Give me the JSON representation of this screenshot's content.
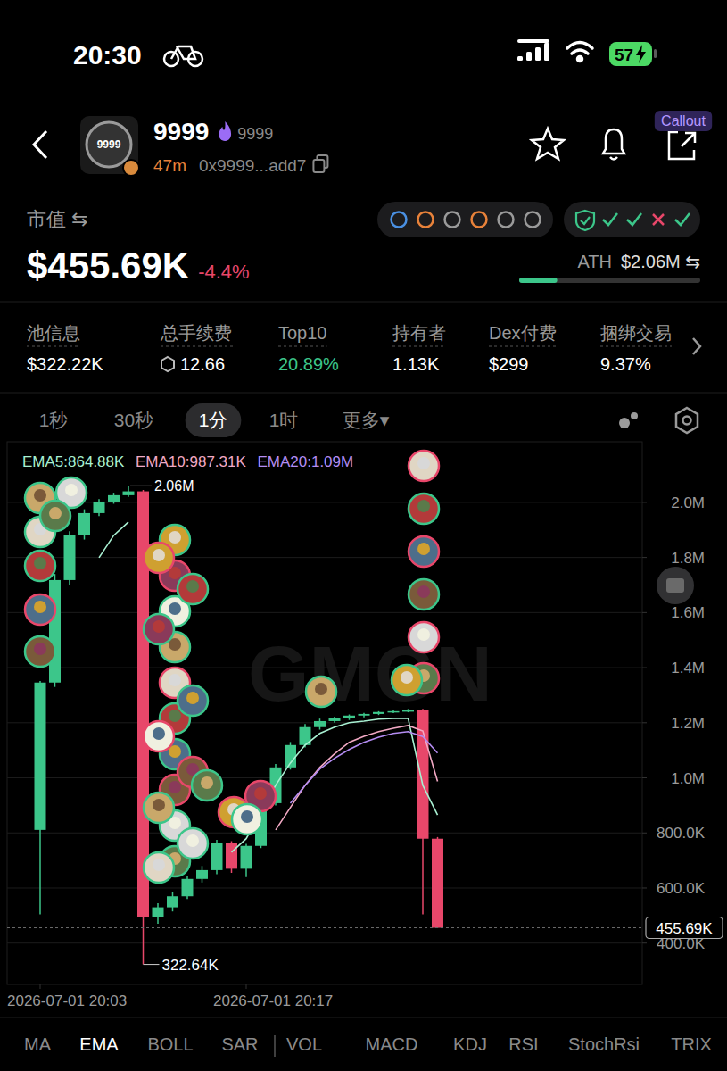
{
  "status_bar": {
    "time": "20:30",
    "battery": "57"
  },
  "header": {
    "symbol": "9999",
    "logo_text": "9999",
    "ticker": "9999",
    "age": "47m",
    "address": "0x9999...add7",
    "badge": "Callout"
  },
  "market_cap": {
    "label": "市值 ⇆",
    "value": "$455.69K",
    "change": "-4.4%",
    "ath_label": "ATH",
    "ath_value": "$2.06M ⇆",
    "ath_progress": 21
  },
  "stats": [
    {
      "label": "池信息",
      "value": "$322.22K"
    },
    {
      "label": "总手续费",
      "value": "12.66"
    },
    {
      "label": "Top10",
      "value": "20.89%"
    },
    {
      "label": "持有者",
      "value": "1.13K"
    },
    {
      "label": "Dex付费",
      "value": "$299"
    },
    {
      "label": "捆绑交易",
      "value": "9.37%"
    }
  ],
  "timeframes": {
    "items": [
      "1秒",
      "30秒",
      "1分",
      "1时",
      "更多▾"
    ],
    "selected": 2
  },
  "chart_data": {
    "type": "candlestick",
    "grid": true,
    "watermark": "GMGN",
    "categories": [
      "2026-07-01 20:03",
      null,
      null,
      null,
      null,
      null,
      null,
      null,
      null,
      null,
      null,
      null,
      null,
      null,
      "2026-07-01 20:17",
      null,
      null,
      null,
      null,
      null,
      null,
      null,
      null,
      null,
      null,
      null,
      null,
      null
    ],
    "ylim": [
      250000,
      2220000
    ],
    "yticks": [
      {
        "value": 400000,
        "label": "400.0K"
      },
      {
        "value": 600000,
        "label": "600.0K"
      },
      {
        "value": 800000,
        "label": "800.0K"
      },
      {
        "value": 1000000,
        "label": "1.0M"
      },
      {
        "value": 1200000,
        "label": "1.2M"
      },
      {
        "value": 1400000,
        "label": "1.4M"
      },
      {
        "value": 1600000,
        "label": "1.6M"
      },
      {
        "value": 1800000,
        "label": "1.8M"
      },
      {
        "value": 2000000,
        "label": "2.0M"
      }
    ],
    "series": [
      {
        "type": "candlestick",
        "open": [
          811000,
          1346000,
          1718000,
          1880000,
          1961000,
          2003000,
          2026000,
          2040000,
          494000,
          530000,
          570000,
          633000,
          665000,
          763000,
          670000,
          753000,
          908000,
          1038000,
          1119000,
          1184000,
          1206000,
          1216000,
          1226000,
          1232000,
          1239000,
          1242000,
          1245000,
          779000
        ],
        "high": [
          1352000,
          1740000,
          1895000,
          1975000,
          2012000,
          2035000,
          2060000,
          2045000,
          545000,
          585000,
          645000,
          680000,
          775000,
          770000,
          760000,
          920000,
          1050000,
          1130000,
          1195000,
          1215000,
          1222000,
          1230000,
          1236000,
          1242000,
          1245000,
          1250000,
          1250000,
          785000
        ],
        "low": [
          504000,
          1330000,
          1700000,
          1865000,
          1950000,
          1995000,
          2020000,
          322640,
          470000,
          515000,
          560000,
          620000,
          650000,
          655000,
          640000,
          745000,
          900000,
          1030000,
          1110000,
          1175000,
          1200000,
          1210000,
          1220000,
          1228000,
          1235000,
          1238000,
          504000,
          455690
        ],
        "close": [
          1346000,
          1718000,
          1880000,
          1961000,
          2003000,
          2026000,
          2040000,
          494000,
          530000,
          570000,
          633000,
          665000,
          763000,
          670000,
          753000,
          908000,
          1038000,
          1119000,
          1184000,
          1206000,
          1216000,
          1226000,
          1232000,
          1239000,
          1242000,
          1245000,
          779000,
          455690
        ],
        "colors": [
          "#3cc68a",
          "#3cc68a",
          "#3cc68a",
          "#3cc68a",
          "#3cc68a",
          "#3cc68a",
          "#3cc68a",
          "#e8476a",
          "#3cc68a",
          "#3cc68a",
          "#3cc68a",
          "#3cc68a",
          "#3cc68a",
          "#e8476a",
          "#3cc68a",
          "#3cc68a",
          "#3cc68a",
          "#3cc68a",
          "#3cc68a",
          "#3cc68a",
          "#3cc68a",
          "#3cc68a",
          "#3cc68a",
          "#3cc68a",
          "#3cc68a",
          "#3cc68a",
          "#e8476a",
          "#e8476a"
        ]
      },
      {
        "name": "EMA5:864.88K",
        "type": "line",
        "color": "#a8f0d2",
        "values": [
          null,
          null,
          null,
          null,
          1799000,
          1880000,
          1929000,
          null,
          null,
          null,
          null,
          null,
          null,
          730000,
          779000,
          876000,
          973000,
          1054000,
          1119000,
          1161000,
          1184000,
          1200000,
          1206000,
          1213000,
          1216000,
          1216000,
          973000,
          864880
        ]
      },
      {
        "name": "EMA10:987.31K",
        "type": "line",
        "color": "#f2a9c4",
        "values": [
          null,
          null,
          null,
          null,
          null,
          null,
          null,
          null,
          null,
          null,
          null,
          null,
          null,
          null,
          null,
          null,
          811000,
          892000,
          973000,
          1038000,
          1087000,
          1129000,
          1151000,
          1168000,
          1180000,
          1190000,
          1170000,
          987310
        ]
      },
      {
        "name": "EMA20:1.09M",
        "type": "line",
        "color": "#b48cf2",
        "values": [
          null,
          null,
          null,
          null,
          null,
          null,
          null,
          null,
          null,
          null,
          null,
          null,
          null,
          null,
          null,
          null,
          null,
          908000,
          973000,
          1032000,
          1071000,
          1103000,
          1129000,
          1148000,
          1161000,
          1168000,
          1150000,
          1090000
        ]
      }
    ],
    "annotations": {
      "high": {
        "value": 2060000,
        "label": "2.06M"
      },
      "low": {
        "value": 322640,
        "label": "322.64K"
      },
      "current": {
        "value": 455690,
        "label": "455.69K"
      }
    }
  },
  "indicators": {
    "items": [
      "MA",
      "EMA",
      "BOLL",
      "SAR",
      "VOL",
      "MACD",
      "KDJ",
      "RSI",
      "StochRsi",
      "TRIX"
    ],
    "selected": 1
  }
}
